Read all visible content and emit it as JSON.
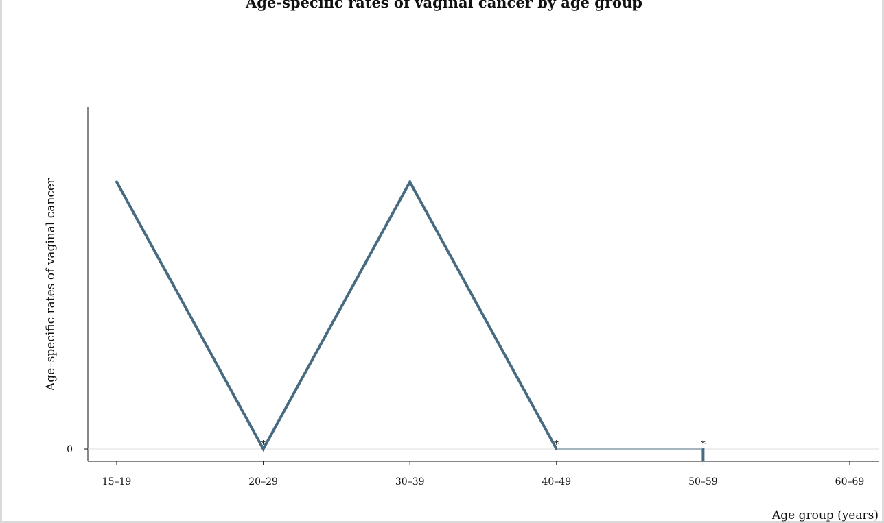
{
  "title": "Age-specific rates of vaginal cancer by age group",
  "chart_data": {
    "type": "line",
    "title": "Age-specific rates of vaginal cancer by age group",
    "xlabel": "Age group (years)",
    "ylabel": "Age–specific rates of vaginal cancer",
    "categories": [
      "15–19",
      "20–29",
      "30–39",
      "40–49",
      "50–59",
      "60–69"
    ],
    "y_ticks": [
      "0"
    ],
    "ylim": [
      0,
      1.15
    ],
    "grid": "horizontal at 0",
    "series": [
      {
        "values": [
          1,
          0,
          1,
          0,
          0,
          null
        ],
        "color": "#486b82"
      }
    ],
    "suppressed_marker": "*",
    "suppressed_categories": [
      "20–29",
      "40–49",
      "50–59"
    ]
  }
}
